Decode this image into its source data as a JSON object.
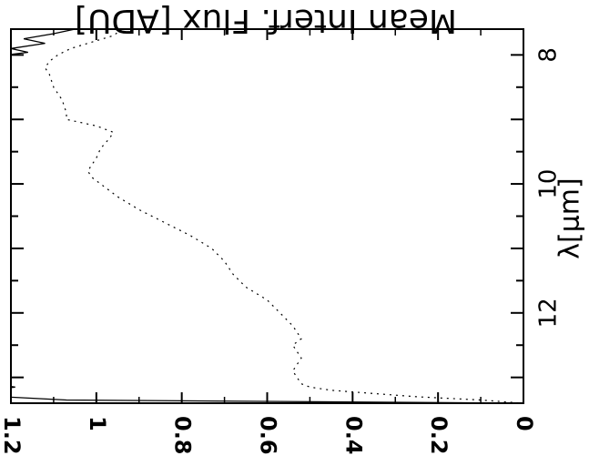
{
  "chart_data": {
    "type": "line",
    "title": "",
    "xlabel": "λ[μm]",
    "ylabel": "Mean Interf. Flux [ADU]",
    "xlim": [
      7.6,
      13.4
    ],
    "ylim": [
      0,
      1.2
    ],
    "orientation": "rotated-90-clockwise",
    "x_ticks": [
      8,
      10,
      12
    ],
    "y_ticks": [
      0,
      0.2,
      0.4,
      0.6,
      0.8,
      1,
      1.2
    ],
    "x_tick_labels": [
      "8",
      "10",
      "12"
    ],
    "y_tick_labels": [
      "0",
      "0.2",
      "0.4",
      "0.6",
      "0.8",
      "1",
      "1.2"
    ],
    "grid": false,
    "legend": "none",
    "series": [
      {
        "style": "solid",
        "color": "#000000",
        "x": [
          7.6,
          7.67,
          7.75,
          7.82,
          7.9,
          7.96,
          8.0,
          8.05,
          8.12,
          8.2,
          8.3,
          8.4,
          13.0,
          13.05,
          13.1,
          13.15,
          13.2,
          13.25,
          13.3,
          13.35,
          13.4
        ],
        "y": [
          1.05,
          1.1,
          1.17,
          1.12,
          1.2,
          1.16,
          1.21,
          1.22,
          1.24,
          1.25,
          1.26,
          1.28,
          1.28,
          1.24,
          1.25,
          1.19,
          1.26,
          1.2,
          1.22,
          1.07,
          0.0
        ]
      },
      {
        "style": "dotted",
        "color": "#000000",
        "x": [
          7.6,
          7.7,
          7.8,
          7.9,
          8.0,
          8.1,
          8.2,
          8.3,
          8.5,
          8.7,
          8.9,
          9.0,
          9.1,
          9.2,
          9.3,
          9.45,
          9.6,
          9.7,
          9.8,
          9.9,
          10.0,
          10.2,
          10.4,
          10.6,
          10.8,
          11.0,
          11.2,
          11.4,
          11.6,
          11.8,
          12.0,
          12.2,
          12.3,
          12.4,
          12.5,
          12.6,
          12.7,
          12.8,
          12.9,
          13.0,
          13.1,
          13.15,
          13.2,
          13.25,
          13.3,
          13.35,
          13.4
        ],
        "y": [
          0.94,
          0.96,
          1.01,
          1.06,
          1.09,
          1.11,
          1.12,
          1.11,
          1.1,
          1.08,
          1.07,
          1.07,
          1.0,
          0.96,
          0.97,
          0.99,
          1.0,
          1.01,
          1.02,
          1.01,
          0.99,
          0.95,
          0.9,
          0.84,
          0.78,
          0.73,
          0.7,
          0.68,
          0.65,
          0.6,
          0.57,
          0.54,
          0.53,
          0.52,
          0.54,
          0.53,
          0.52,
          0.53,
          0.54,
          0.53,
          0.52,
          0.5,
          0.45,
          0.35,
          0.25,
          0.1,
          0.0
        ]
      }
    ]
  }
}
